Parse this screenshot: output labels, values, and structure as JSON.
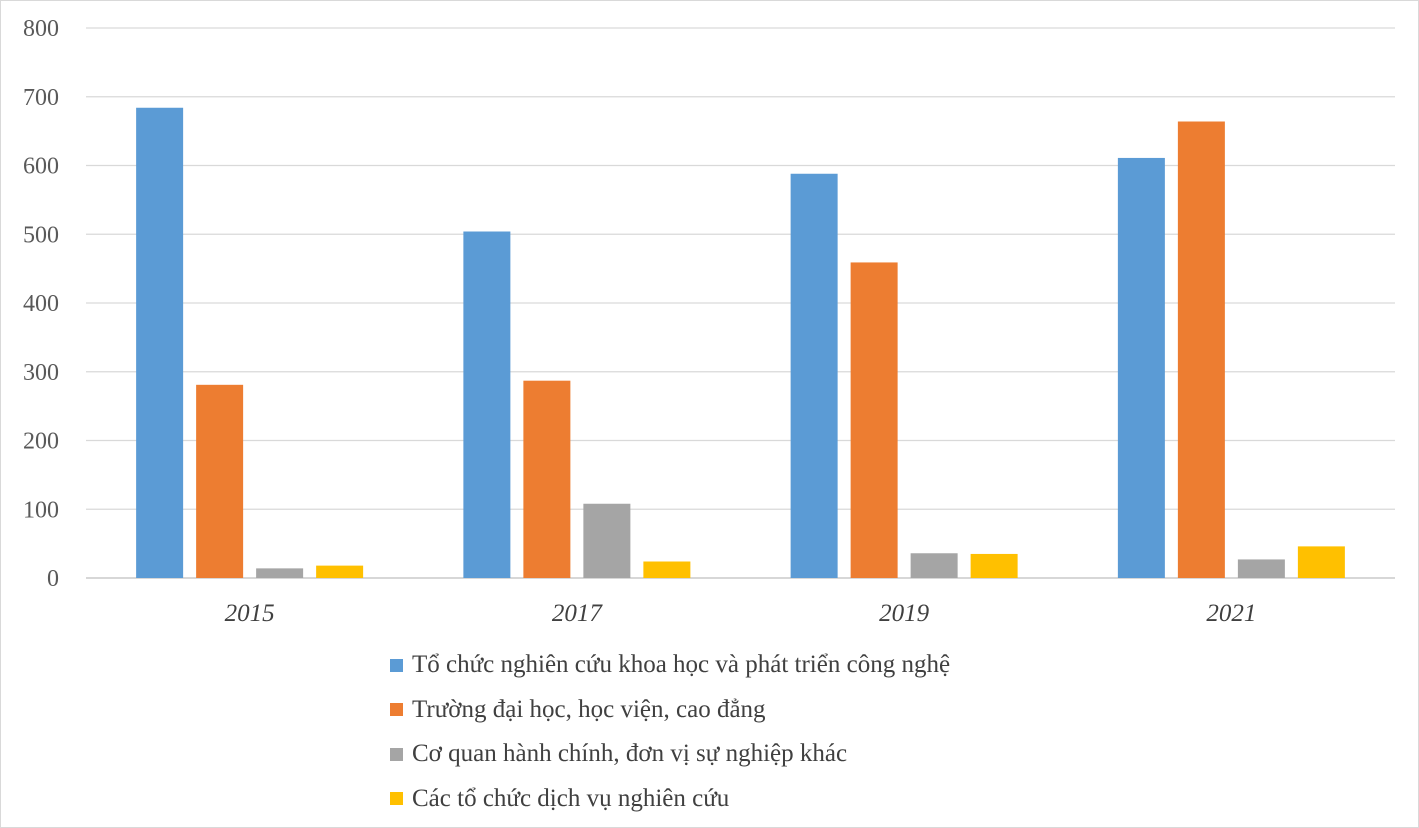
{
  "chart_data": {
    "type": "bar",
    "categories": [
      "2015",
      "2017",
      "2019",
      "2021"
    ],
    "ylim": [
      0,
      800
    ],
    "yticks": [
      0,
      100,
      200,
      300,
      400,
      500,
      600,
      700,
      800
    ],
    "grid": true,
    "legend_position": "bottom",
    "series": [
      {
        "name": "Tổ chức nghiên cứu khoa học và phát triển công nghệ",
        "color": "#5B9BD5",
        "values": [
          684,
          504,
          588,
          611
        ]
      },
      {
        "name": "Trường đại học, học viện, cao đẳng",
        "color": "#ED7D31",
        "values": [
          281,
          287,
          459,
          664
        ]
      },
      {
        "name": "Cơ quan hành chính, đơn vị sự nghiệp khác",
        "color": "#A5A5A5",
        "values": [
          14,
          108,
          36,
          27
        ]
      },
      {
        "name": "Các tổ chức dịch vụ nghiên cứu",
        "color": "#FFC000",
        "values": [
          18,
          24,
          35,
          46
        ]
      }
    ]
  }
}
